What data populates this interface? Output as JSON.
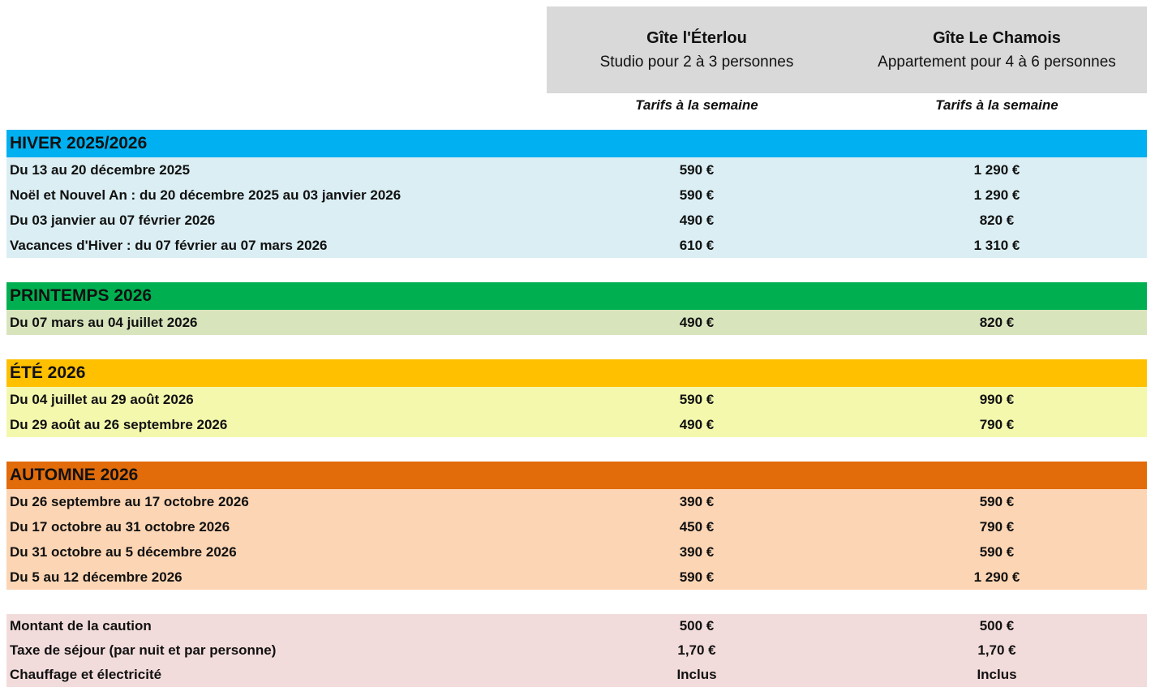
{
  "header": {
    "background": "#D9D9D9",
    "columns": [
      {
        "title": "Gîte l'Éterlou",
        "subtitle": "Studio pour 2 à 3 personnes",
        "tariff_label": "Tarifs à la semaine"
      },
      {
        "title": "Gîte Le Chamois",
        "subtitle": "Appartement pour 4 à 6 personnes",
        "tariff_label": "Tarifs à la semaine"
      }
    ]
  },
  "sections": [
    {
      "title": "HIVER 2025/2026",
      "header_color": "#00B0F0",
      "row_color": "#DAEEF3",
      "rows": [
        {
          "label": "Du 13 au 20 décembre 2025",
          "eterlou": "590 €",
          "chamois": "1 290 €"
        },
        {
          "label": "Noël et Nouvel An : du 20 décembre 2025 au 03 janvier 2026",
          "eterlou": "590 €",
          "chamois": "1 290 €"
        },
        {
          "label": "Du 03 janvier au 07 février 2026",
          "eterlou": "490 €",
          "chamois": "820 €"
        },
        {
          "label": "Vacances d'Hiver : du 07 février au 07 mars 2026",
          "eterlou": "610 €",
          "chamois": "1 310 €"
        }
      ]
    },
    {
      "title": "PRINTEMPS 2026",
      "header_color": "#00B050",
      "row_color": "#D8E4BC",
      "rows": [
        {
          "label": "Du 07 mars au 04 juillet 2026",
          "eterlou": "490 €",
          "chamois": "820 €"
        }
      ]
    },
    {
      "title": "ÉTÉ 2026",
      "header_color": "#FFC000",
      "row_color": "#F4F8AD",
      "rows": [
        {
          "label": "Du 04 juillet au 29 août 2026",
          "eterlou": "590 €",
          "chamois": "990 €"
        },
        {
          "label": "Du 29 août au 26 septembre 2026",
          "eterlou": "490 €",
          "chamois": "790 €"
        }
      ]
    },
    {
      "title": "AUTOMNE 2026",
      "header_color": "#E26B0A",
      "row_color": "#FCD5B4",
      "rows": [
        {
          "label": "Du 26 septembre au 17 octobre 2026",
          "eterlou": "390 €",
          "chamois": "590 €"
        },
        {
          "label": "Du 17 octobre au 31 octobre 2026",
          "eterlou": "450 €",
          "chamois": "790 €"
        },
        {
          "label": "Du 31 octobre au 5 décembre 2026",
          "eterlou": "390 €",
          "chamois": "590 €"
        },
        {
          "label": "Du 5 au 12 décembre 2026",
          "eterlou": "590 €",
          "chamois": "1 290 €"
        }
      ]
    }
  ],
  "footer": {
    "row_color": "#F2DCDB",
    "rows": [
      {
        "label": "Montant de la caution",
        "eterlou": "500 €",
        "chamois": "500 €"
      },
      {
        "label": "Taxe de séjour (par nuit et par personne)",
        "eterlou": "1,70 €",
        "chamois": "1,70 €"
      },
      {
        "label": "Chauffage et électricité",
        "eterlou": "Inclus",
        "chamois": "Inclus"
      }
    ]
  }
}
